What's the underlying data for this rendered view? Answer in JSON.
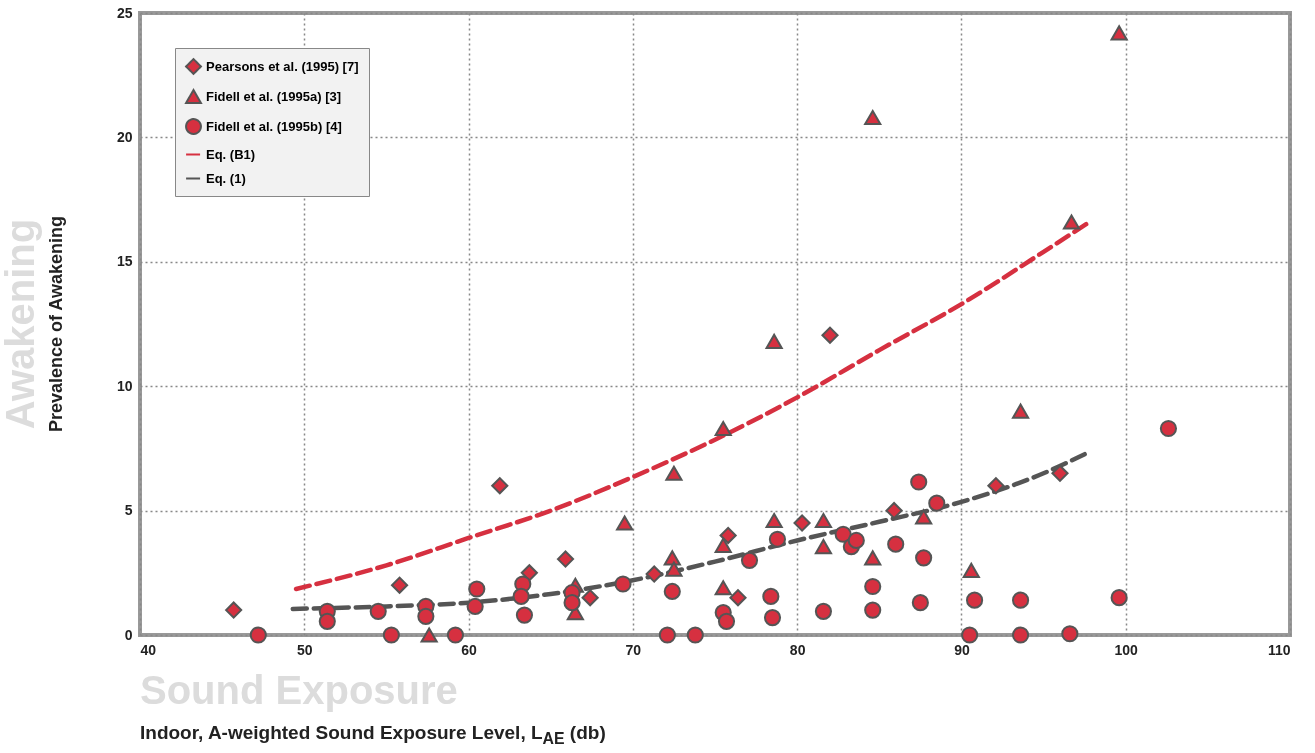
{
  "chart_data": {
    "type": "scatter",
    "xlabel": "Indoor, A-weighted Sound Exposure Level, L$_{AE}$ (db)",
    "ylabel": "Prevalence of Awakening",
    "annotations": [
      "Awakening",
      "Sound Exposure"
    ],
    "xlim": [
      40,
      110
    ],
    "xticks": [
      40,
      50,
      60,
      70,
      80,
      90,
      100,
      110
    ],
    "ylim": [
      0,
      25
    ],
    "yticks": [
      0,
      5,
      10,
      15,
      20,
      25
    ],
    "grid": true,
    "legend": "top left",
    "series": [
      {
        "name": "Pearsons et al. (1995) [7]",
        "marker": "diamond",
        "color": "#d63040",
        "x": [
          45.7,
          55.8,
          61.9,
          63.7,
          65.9,
          67.4,
          71.3,
          75.8,
          76.4,
          80.3,
          82.0,
          85.9,
          92.1,
          96.0
        ],
        "values": [
          1.0,
          2.0,
          6.0,
          2.5,
          3.05,
          1.5,
          2.45,
          4.0,
          1.5,
          4.5,
          12.05,
          5.0,
          6.0,
          6.5
        ]
      },
      {
        "name": "Fidell et al. (1995a) [3]",
        "marker": "triangle",
        "color": "#d63040",
        "x": [
          57.6,
          66.5,
          66.5,
          69.5,
          72.5,
          72.4,
          72.5,
          75.5,
          75.5,
          75.5,
          78.6,
          78.6,
          81.6,
          81.6,
          84.6,
          84.6,
          87.7,
          90.6,
          93.6,
          96.7,
          99.6
        ],
        "values": [
          0,
          2.0,
          0.9,
          4.5,
          6.5,
          3.1,
          2.65,
          8.3,
          3.6,
          1.9,
          11.8,
          4.6,
          4.6,
          3.55,
          20.8,
          3.1,
          4.75,
          2.6,
          9.0,
          16.6,
          24.2
        ]
      },
      {
        "name": "Fidell et al. (1995b) [4]",
        "marker": "circle",
        "color": "#d63040",
        "x": [
          47.2,
          51.4,
          51.4,
          54.5,
          55.3,
          57.4,
          57.4,
          59.2,
          60.5,
          60.4,
          63.3,
          63.2,
          63.4,
          66.3,
          66.3,
          69.4,
          72.4,
          72.1,
          73.8,
          75.5,
          75.7,
          77.1,
          78.8,
          78.4,
          78.5,
          81.6,
          82.8,
          83.3,
          83.6,
          84.6,
          84.6,
          86.0,
          87.4,
          87.7,
          87.5,
          88.5,
          90.8,
          90.5,
          93.6,
          93.6,
          96.6,
          99.6,
          102.6
        ],
        "values": [
          0,
          0.95,
          0.55,
          0.95,
          0,
          1.15,
          0.75,
          0,
          1.85,
          1.15,
          2.05,
          1.55,
          0.8,
          1.7,
          1.3,
          2.05,
          1.75,
          0,
          0,
          0.9,
          0.55,
          3.0,
          3.85,
          1.55,
          0.7,
          0.95,
          4.05,
          3.55,
          3.8,
          1.95,
          1.0,
          3.65,
          6.15,
          3.1,
          1.3,
          5.3,
          1.4,
          0,
          1.4,
          0,
          0.05,
          1.5,
          8.3
        ]
      },
      {
        "name": "Eq. (B1)",
        "type": "line",
        "marker": "none",
        "line_style": "dashed",
        "color": "#d63040",
        "x": [
          49.5,
          55,
          60,
          65,
          70,
          75,
          80,
          85,
          90,
          95,
          97.8
        ],
        "values": [
          1.85,
          2.8,
          3.9,
          5.0,
          6.35,
          7.85,
          9.55,
          11.45,
          13.3,
          15.4,
          16.6
        ]
      },
      {
        "name": "Eq. (1)",
        "type": "line",
        "marker": "none",
        "line_style": "dashed",
        "color": "#555555",
        "x": [
          49.3,
          55,
          60,
          65,
          70,
          75,
          80,
          85,
          90,
          95,
          97.6
        ],
        "values": [
          1.05,
          1.15,
          1.3,
          1.65,
          2.2,
          2.95,
          3.8,
          4.55,
          5.35,
          6.5,
          7.3
        ]
      }
    ]
  }
}
